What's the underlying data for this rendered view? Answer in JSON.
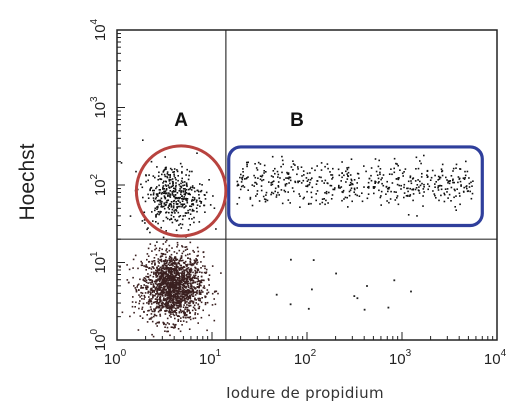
{
  "chart_data": {
    "type": "scatter",
    "scale": "log",
    "xlabel": "Iodure de propidium",
    "ylabel": "Hoechst",
    "xlim": [
      1,
      10000
    ],
    "ylim": [
      1,
      10000
    ],
    "grid": false,
    "x_ticks": [
      {
        "base": "10",
        "exp": "0"
      },
      {
        "base": "10",
        "exp": "1"
      },
      {
        "base": "10",
        "exp": "2"
      },
      {
        "base": "10",
        "exp": "3"
      },
      {
        "base": "10",
        "exp": "4"
      }
    ],
    "y_ticks": [
      {
        "base": "10",
        "exp": "0"
      },
      {
        "base": "10",
        "exp": "1"
      },
      {
        "base": "10",
        "exp": "2"
      },
      {
        "base": "10",
        "exp": "3"
      },
      {
        "base": "10",
        "exp": "4"
      }
    ],
    "quadrant_dividers": {
      "x": 14,
      "y": 20
    },
    "gates": [
      {
        "label": "A",
        "shape": "ellipse",
        "color": "#b8433f",
        "x_range": [
          1.6,
          14
        ],
        "y_range": [
          22,
          320
        ]
      },
      {
        "label": "B",
        "shape": "rounded-rectangle",
        "color": "#2f3f9c",
        "x_range": [
          15,
          7000
        ],
        "y_range": [
          30,
          310
        ]
      }
    ],
    "populations": [
      {
        "name_hidden": true,
        "center": [
          3.8,
          5
        ],
        "spread_log": [
          0.16,
          0.22
        ],
        "density": "very high",
        "color": "#3a2020"
      },
      {
        "name_hidden": true,
        "center": [
          3.8,
          75
        ],
        "spread_log": [
          0.16,
          0.2
        ],
        "density": "high",
        "color": "#111111"
      },
      {
        "name_hidden": true,
        "center": [
          600,
          110
        ],
        "spread_log": [
          0.75,
          0.14
        ],
        "density": "moderate",
        "color": "#111111"
      }
    ]
  }
}
